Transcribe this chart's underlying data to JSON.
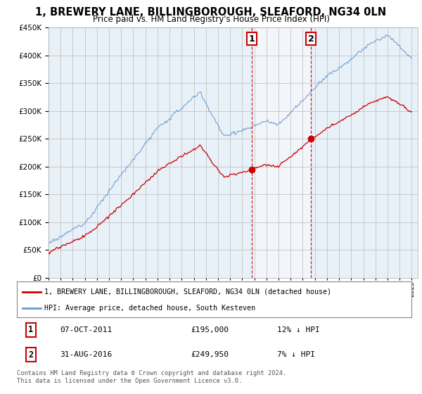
{
  "title": "1, BREWERY LANE, BILLINGBOROUGH, SLEAFORD, NG34 0LN",
  "subtitle": "Price paid vs. HM Land Registry's House Price Index (HPI)",
  "legend_line1": "1, BREWERY LANE, BILLINGBOROUGH, SLEAFORD, NG34 0LN (detached house)",
  "legend_line2": "HPI: Average price, detached house, South Kesteven",
  "footnote": "Contains HM Land Registry data © Crown copyright and database right 2024.\nThis data is licensed under the Open Government Licence v3.0.",
  "transaction1_label": "1",
  "transaction1_date": "07-OCT-2011",
  "transaction1_price": "£195,000",
  "transaction1_hpi": "12% ↓ HPI",
  "transaction2_label": "2",
  "transaction2_date": "31-AUG-2016",
  "transaction2_price": "£249,950",
  "transaction2_hpi": "7% ↓ HPI",
  "ylim": [
    0,
    450000
  ],
  "xlim_start": 1995.0,
  "xlim_end": 2025.5,
  "red_color": "#cc0000",
  "blue_color": "#6699cc",
  "shaded_color": "#d0e4f5",
  "marker1_x": 2011.77,
  "marker2_x": 2016.67,
  "marker1_y": 195000,
  "marker2_y": 249950,
  "bg_color": "#e8f0f8"
}
